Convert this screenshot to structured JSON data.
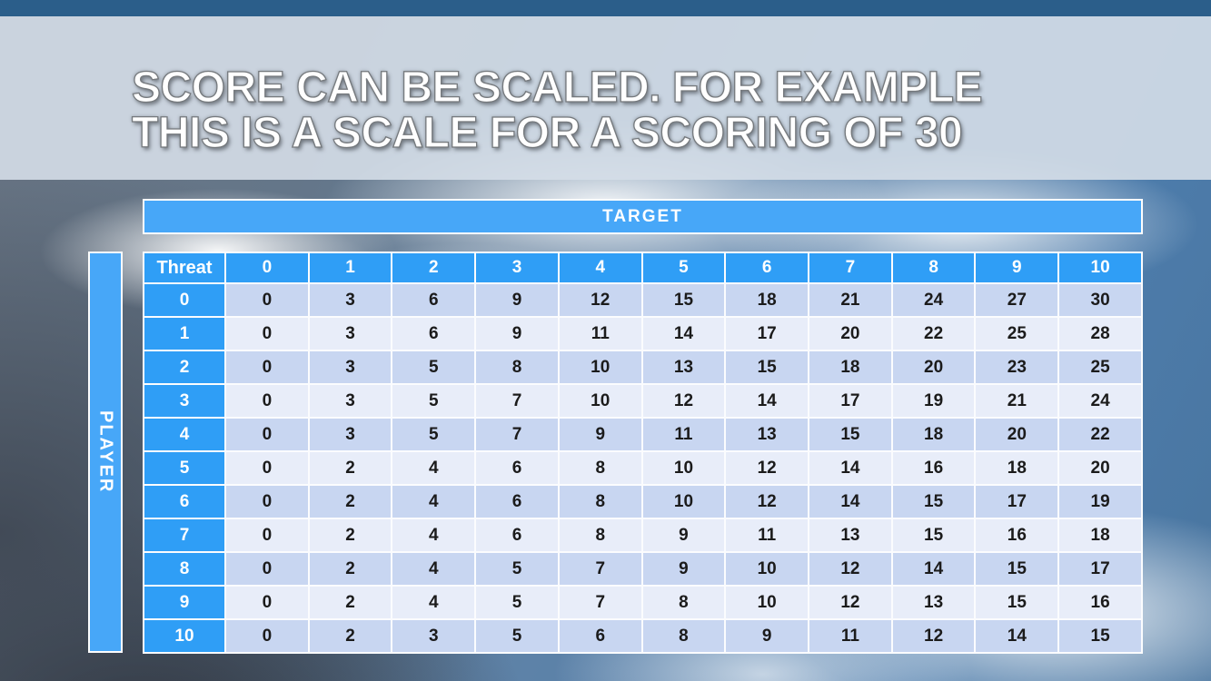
{
  "title": {
    "line1": "SCORE CAN BE SCALED. FOR EXAMPLE",
    "line2": "THIS IS A SCALE FOR A SCORING OF 30"
  },
  "matrix": {
    "target_label": "TARGET",
    "player_label": "PLAYER",
    "corner_label": "Threat",
    "column_headers": [
      "0",
      "1",
      "2",
      "3",
      "4",
      "5",
      "6",
      "7",
      "8",
      "9",
      "10"
    ],
    "row_headers": [
      "0",
      "1",
      "2",
      "3",
      "4",
      "5",
      "6",
      "7",
      "8",
      "9",
      "10"
    ],
    "rows": [
      [
        0,
        3,
        6,
        9,
        12,
        15,
        18,
        21,
        24,
        27,
        30
      ],
      [
        0,
        3,
        6,
        9,
        11,
        14,
        17,
        20,
        22,
        25,
        28
      ],
      [
        0,
        3,
        5,
        8,
        10,
        13,
        15,
        18,
        20,
        23,
        25
      ],
      [
        0,
        3,
        5,
        7,
        10,
        12,
        14,
        17,
        19,
        21,
        24
      ],
      [
        0,
        3,
        5,
        7,
        9,
        11,
        13,
        15,
        18,
        20,
        22
      ],
      [
        0,
        2,
        4,
        6,
        8,
        10,
        12,
        14,
        16,
        18,
        20
      ],
      [
        0,
        2,
        4,
        6,
        8,
        10,
        12,
        14,
        15,
        17,
        19
      ],
      [
        0,
        2,
        4,
        6,
        8,
        9,
        11,
        13,
        15,
        16,
        18
      ],
      [
        0,
        2,
        4,
        5,
        7,
        9,
        10,
        12,
        14,
        15,
        17
      ],
      [
        0,
        2,
        4,
        5,
        7,
        8,
        10,
        12,
        13,
        15,
        16
      ],
      [
        0,
        2,
        3,
        5,
        6,
        8,
        9,
        11,
        12,
        14,
        15
      ]
    ]
  },
  "colors": {
    "banner_blue": "#47a7f8",
    "header_blue": "#2f9ef6",
    "row_band_dark": "#c8d6f1",
    "row_band_light": "#e8edf9",
    "cell_text": "#1b1b1b",
    "title_text": "#ffffff"
  }
}
